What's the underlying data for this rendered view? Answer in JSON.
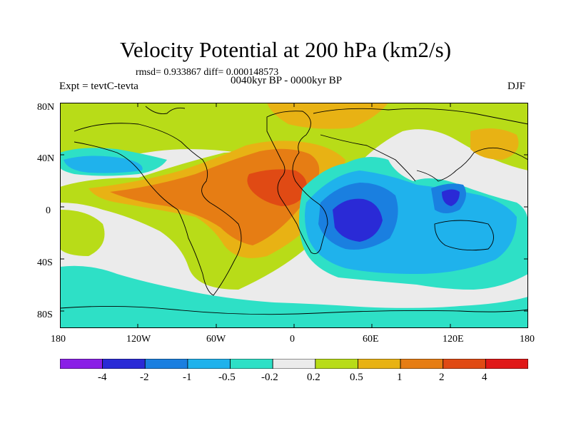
{
  "title": "Velocity Potential at 200 hPa (km2/s)",
  "stats": "rmsd= 0.933867 diff= 0.000148573",
  "period": "0040kyr BP - 0000kyr BP",
  "experiment": "Expt = tevtC-tevta",
  "season": "DJF",
  "axes": {
    "lat_ticks": [
      "80N",
      "40N",
      "0",
      "40S",
      "80S"
    ],
    "lon_ticks": [
      "180",
      "120W",
      "60W",
      "0",
      "60E",
      "120E",
      "180"
    ]
  },
  "legend": {
    "labels": [
      "-4",
      "-2",
      "-1",
      "-0.5",
      "-0.2",
      "0.2",
      "0.5",
      "1",
      "2",
      "4"
    ],
    "colors": [
      "#8a1fe6",
      "#2a2ad6",
      "#1a7fe0",
      "#1fb2ec",
      "#2ee0c6",
      "#ebebeb",
      "#b8dc18",
      "#e8b214",
      "#e67d14",
      "#e04a14",
      "#e01818"
    ]
  }
}
